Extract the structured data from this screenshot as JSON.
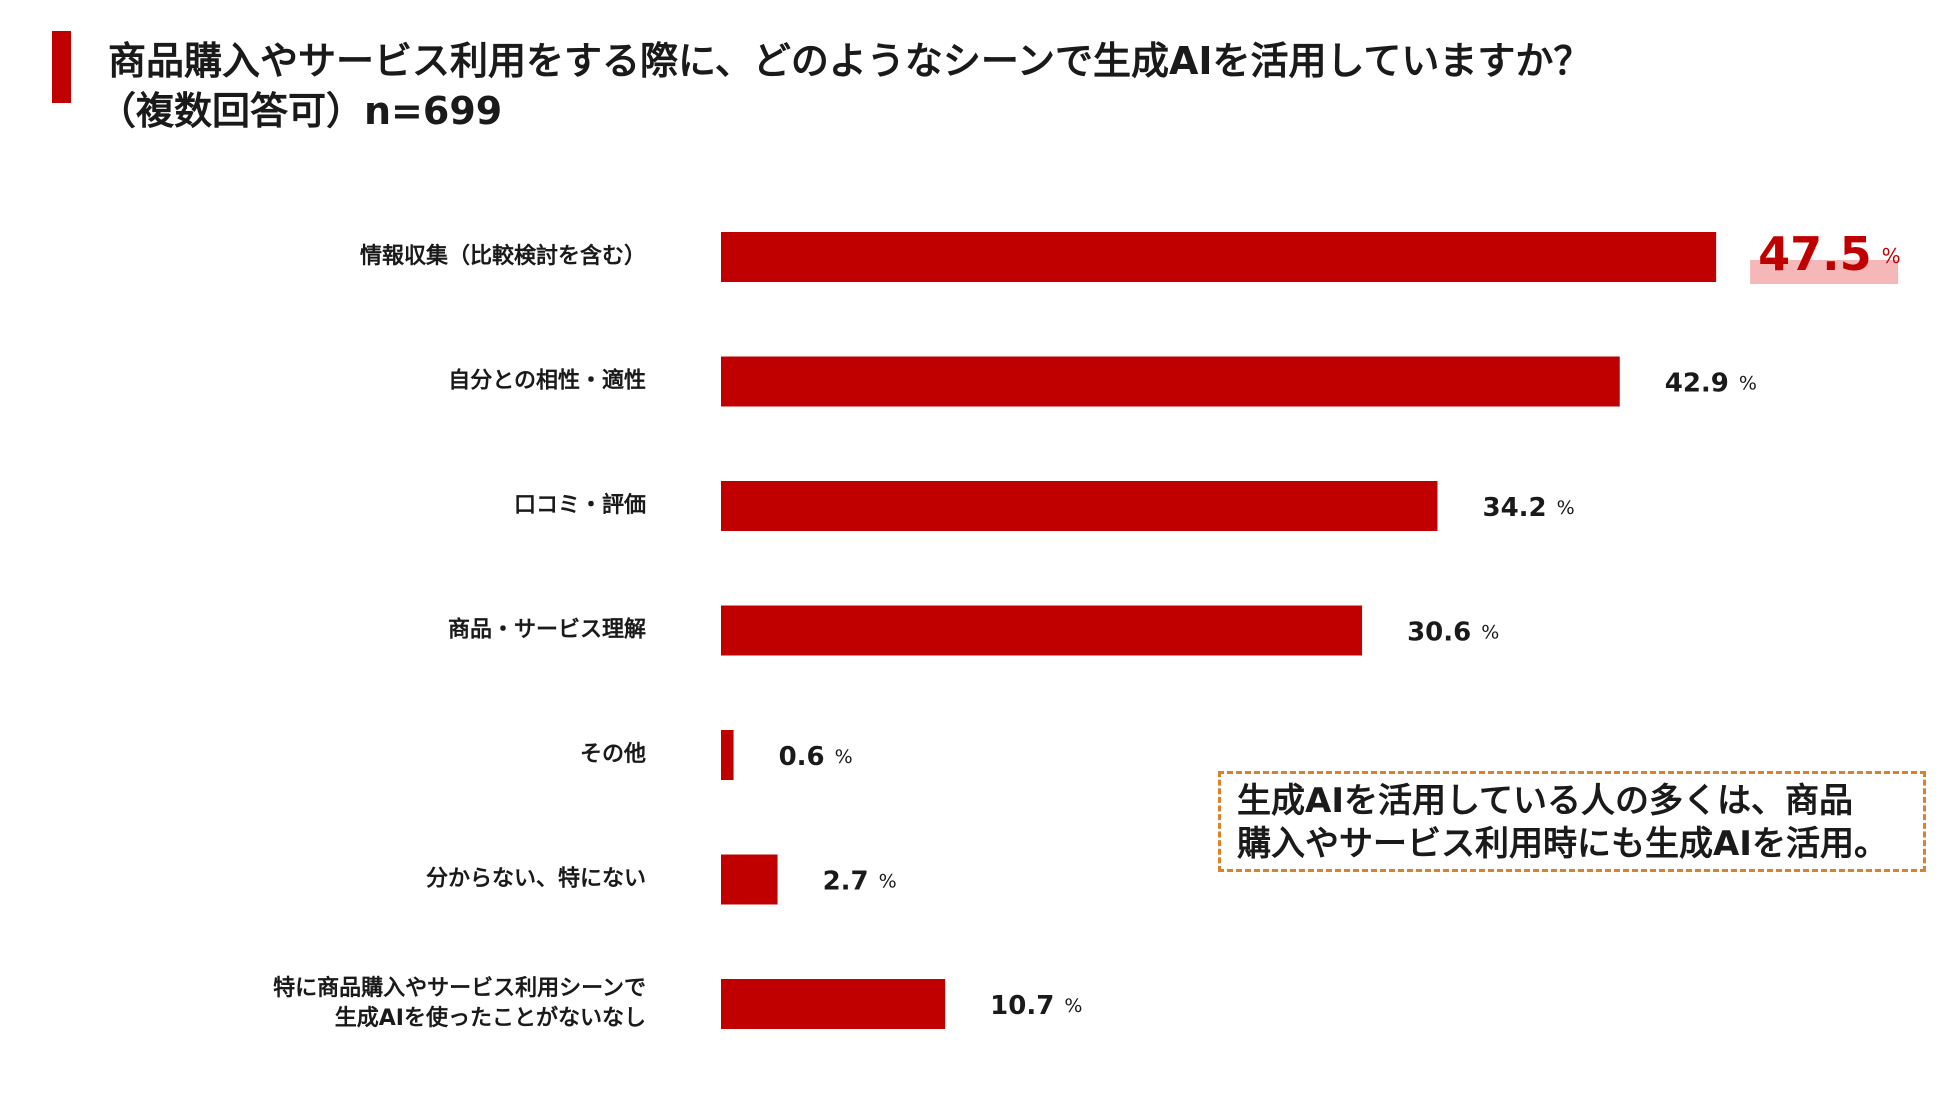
{
  "title": {
    "line1": "商品購入やサービス利用をする際に、どのようなシーンで生成AIを活用していますか？",
    "line2": "（複数回答可）n=699"
  },
  "callout": {
    "line1": "生成AIを活用している人の多くは、商品",
    "line2": "購入やサービス利用時にも生成AIを活用。"
  },
  "chart_data": {
    "type": "bar",
    "orientation": "horizontal",
    "title": "商品購入やサービス利用をする際に、どのようなシーンで生成AIを活用していますか？（複数回答可）n=699",
    "categories": [
      [
        "情報収集（比較検討を含む）"
      ],
      [
        "自分との相性・適性"
      ],
      [
        "口コミ・評価"
      ],
      [
        "商品・サービス理解"
      ],
      [
        "その他"
      ],
      [
        "分からない、特にない"
      ],
      [
        "特に商品購入やサービス利用シーンで",
        "生成AIを使ったことがないなし"
      ]
    ],
    "values": [
      47.5,
      42.9,
      34.2,
      30.6,
      0.6,
      2.7,
      10.7
    ],
    "value_labels": [
      "47.5",
      "42.9",
      "34.2",
      "30.6",
      "0.6",
      "2.7",
      "10.7"
    ],
    "unit": "%",
    "highlight_index": 0,
    "xlim": [
      0,
      50
    ],
    "xlabel": "",
    "ylabel": "",
    "grid": false,
    "bar_color": "#c00000",
    "highlight_text_color": "#c00000",
    "highlight_bg_color": "#f4b8b8"
  }
}
